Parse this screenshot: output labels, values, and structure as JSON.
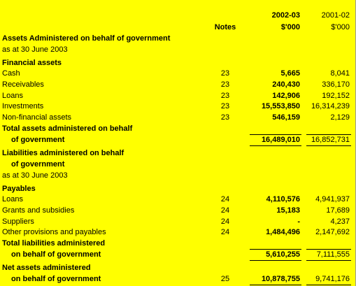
{
  "header": {
    "current_year": "2002-03",
    "prior_year": "2001-02",
    "notes": "Notes",
    "current_unit": "$'000",
    "prior_unit": "$'000"
  },
  "rows": [
    {
      "label": "Assets Administered on behalf of government"
    },
    {
      "label": "as at 30 June 2003"
    },
    {
      "label": "Financial assets"
    },
    {
      "label": "Cash",
      "notes": "23",
      "current": "5,665",
      "prior": "8,041"
    },
    {
      "label": "Receivables",
      "notes": "23",
      "current": "240,430",
      "prior": "336,170"
    },
    {
      "label": "Loans",
      "notes": "23",
      "current": "142,906",
      "prior": "192,152"
    },
    {
      "label": "Investments",
      "notes": "23",
      "current": "15,553,850",
      "prior": "16,314,239"
    },
    {
      "label": "Non-financial assets",
      "notes": "23",
      "current": "546,159",
      "prior": "2,129"
    },
    {
      "label": "Total assets administered on behalf"
    },
    {
      "label": "of government",
      "current": "16,489,010",
      "prior": "16,852,731"
    },
    {
      "label": "Liabilities administered on behalf"
    },
    {
      "label": "of government"
    },
    {
      "label": "as at 30 June 2003"
    },
    {
      "label": "Payables"
    },
    {
      "label": "Loans",
      "notes": "24",
      "current": "4,110,576",
      "prior": "4,941,937"
    },
    {
      "label": "Grants and subsidies",
      "notes": "24",
      "current": "15,183",
      "prior": "17,689"
    },
    {
      "label": "Suppliers",
      "notes": "24",
      "current": "-",
      "prior": "4,237"
    },
    {
      "label": "Other provisions and payables",
      "notes": "24",
      "current": "1,484,496",
      "prior": "2,147,692"
    },
    {
      "label": "Total liabilities administered"
    },
    {
      "label": "on behalf of government",
      "current": "5,610,255",
      "prior": "7,111,555"
    },
    {
      "label": "Net assets administered"
    },
    {
      "label": "on behalf of government",
      "notes": "25",
      "current": "10,878,755",
      "prior": "9,741,176"
    }
  ]
}
